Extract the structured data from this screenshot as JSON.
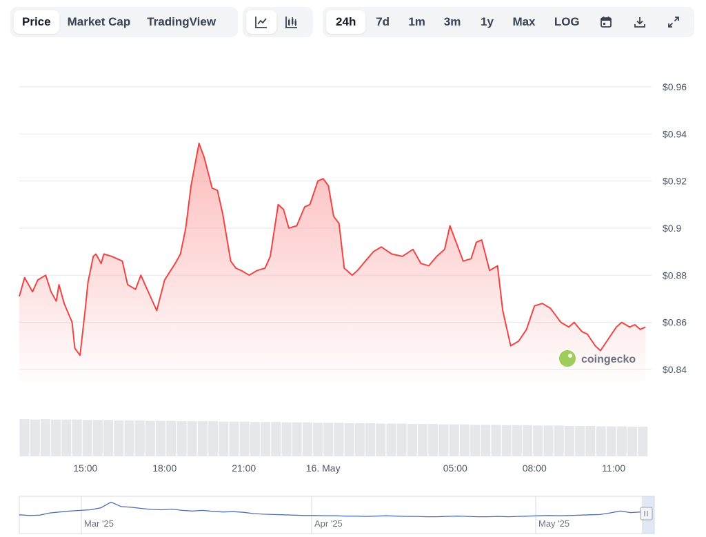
{
  "toolbar": {
    "metric_tabs": [
      {
        "label": "Price",
        "active": true
      },
      {
        "label": "Market Cap",
        "active": false
      },
      {
        "label": "TradingView",
        "active": false
      }
    ],
    "chart_type_buttons": [
      {
        "icon": "line-chart-icon",
        "active": true
      },
      {
        "icon": "candlestick-chart-icon",
        "active": false
      }
    ],
    "range_tabs": [
      {
        "label": "24h",
        "active": true
      },
      {
        "label": "7d",
        "active": false
      },
      {
        "label": "1m",
        "active": false
      },
      {
        "label": "3m",
        "active": false
      },
      {
        "label": "1y",
        "active": false
      },
      {
        "label": "Max",
        "active": false
      },
      {
        "label": "LOG",
        "active": false
      }
    ],
    "tool_icons": [
      "calendar-icon",
      "download-icon",
      "expand-icon"
    ]
  },
  "watermark": {
    "text": "coingecko"
  },
  "colors": {
    "line": "#ef4444",
    "fill_top": "#fca5a5",
    "grid": "#e5e7eb",
    "volume": "#e5e7eb",
    "navigator_line": "#4f6fb3",
    "tab_bg": "#f3f4f6",
    "logo_green": "#8dc63f"
  },
  "chart_data": {
    "type": "line",
    "title": "",
    "xlabel": "",
    "ylabel": "",
    "ylim": [
      0.835,
      0.967
    ],
    "y_ticks": [
      0.96,
      0.94,
      0.92,
      0.9,
      0.88,
      0.86,
      0.84
    ],
    "y_tick_labels": [
      "$0.96",
      "$0.94",
      "$0.92",
      "$0.9",
      "$0.88",
      "$0.86",
      "$0.84"
    ],
    "x_unit": "hours since 12:30 on 15 May",
    "xlim": [
      0,
      23.8
    ],
    "x_ticks": [
      {
        "x": 2.5,
        "label": "15:00"
      },
      {
        "x": 5.5,
        "label": "18:00"
      },
      {
        "x": 8.5,
        "label": "21:00"
      },
      {
        "x": 11.5,
        "label": "16. May"
      },
      {
        "x": 16.5,
        "label": "05:00"
      },
      {
        "x": 19.5,
        "label": "08:00"
      },
      {
        "x": 22.5,
        "label": "11:00"
      }
    ],
    "series": [
      {
        "name": "",
        "x": [
          0,
          0.2,
          0.5,
          0.7,
          1.0,
          1.2,
          1.4,
          1.5,
          1.7,
          2.0,
          2.1,
          2.3,
          2.5,
          2.6,
          2.8,
          2.9,
          3.1,
          3.2,
          3.5,
          3.9,
          4.1,
          4.4,
          4.6,
          4.8,
          5.0,
          5.2,
          5.5,
          5.9,
          6.1,
          6.3,
          6.5,
          6.8,
          7.0,
          7.3,
          7.5,
          7.7,
          8.0,
          8.2,
          8.4,
          8.7,
          9.0,
          9.3,
          9.5,
          9.8,
          10.0,
          10.2,
          10.5,
          10.8,
          11.0,
          11.3,
          11.5,
          11.7,
          11.9,
          12.1,
          12.3,
          12.6,
          12.8,
          13.1,
          13.4,
          13.7,
          14.1,
          14.5,
          14.9,
          15.2,
          15.5,
          15.8,
          16.1,
          16.3,
          16.5,
          16.8,
          17.1,
          17.3,
          17.5,
          17.8,
          18.1,
          18.3,
          18.6,
          18.9,
          19.2,
          19.5,
          19.8,
          20.1,
          20.3,
          20.5,
          20.8,
          21.0,
          21.3,
          21.5,
          21.8,
          22.0,
          22.3,
          22.6,
          22.8,
          23.1,
          23.3,
          23.5,
          23.7
        ],
        "values": [
          0.871,
          0.879,
          0.873,
          0.878,
          0.88,
          0.873,
          0.869,
          0.876,
          0.868,
          0.86,
          0.849,
          0.846,
          0.866,
          0.877,
          0.888,
          0.889,
          0.885,
          0.889,
          0.888,
          0.886,
          0.876,
          0.874,
          0.88,
          0.875,
          0.87,
          0.865,
          0.878,
          0.885,
          0.889,
          0.9,
          0.918,
          0.936,
          0.93,
          0.917,
          0.916,
          0.906,
          0.886,
          0.883,
          0.882,
          0.88,
          0.882,
          0.883,
          0.888,
          0.91,
          0.908,
          0.9,
          0.901,
          0.909,
          0.91,
          0.92,
          0.921,
          0.918,
          0.905,
          0.902,
          0.883,
          0.88,
          0.882,
          0.886,
          0.89,
          0.892,
          0.889,
          0.888,
          0.891,
          0.885,
          0.884,
          0.888,
          0.891,
          0.901,
          0.895,
          0.886,
          0.887,
          0.894,
          0.895,
          0.882,
          0.884,
          0.865,
          0.85,
          0.852,
          0.857,
          0.867,
          0.868,
          0.866,
          0.863,
          0.86,
          0.858,
          0.86,
          0.856,
          0.855,
          0.85,
          0.848,
          0.853,
          0.858,
          0.86,
          0.858,
          0.859,
          0.857,
          0.858
        ]
      }
    ],
    "volume_series": [
      0.93,
      0.92,
      0.93,
      0.92,
      0.92,
      0.92,
      0.91,
      0.91,
      0.91,
      0.9,
      0.9,
      0.9,
      0.89,
      0.89,
      0.89,
      0.88,
      0.88,
      0.88,
      0.88,
      0.87,
      0.87,
      0.87,
      0.86,
      0.86,
      0.86,
      0.85,
      0.85,
      0.85,
      0.84,
      0.84,
      0.84,
      0.83,
      0.83,
      0.83,
      0.82,
      0.82,
      0.82,
      0.81,
      0.81,
      0.81,
      0.8,
      0.8,
      0.8,
      0.79,
      0.79,
      0.79,
      0.78,
      0.78,
      0.78,
      0.77,
      0.77,
      0.77,
      0.76,
      0.76,
      0.76,
      0.75,
      0.75,
      0.75,
      0.74,
      0.74
    ],
    "navigator": {
      "labels": [
        "Mar '25",
        "Apr '25",
        "May '25"
      ],
      "values": [
        0.46,
        0.44,
        0.45,
        0.52,
        0.55,
        0.58,
        0.6,
        0.62,
        0.68,
        0.86,
        0.72,
        0.7,
        0.66,
        0.63,
        0.62,
        0.64,
        0.6,
        0.58,
        0.6,
        0.57,
        0.55,
        0.56,
        0.54,
        0.5,
        0.48,
        0.47,
        0.46,
        0.45,
        0.44,
        0.44,
        0.43,
        0.43,
        0.42,
        0.42,
        0.41,
        0.42,
        0.43,
        0.42,
        0.41,
        0.41,
        0.4,
        0.4,
        0.41,
        0.42,
        0.41,
        0.4,
        0.4,
        0.41,
        0.4,
        0.41,
        0.42,
        0.43,
        0.44,
        0.43,
        0.44,
        0.45,
        0.46,
        0.47,
        0.52,
        0.58,
        0.53,
        0.55,
        0.48
      ]
    },
    "grid": true,
    "legend": "none"
  }
}
